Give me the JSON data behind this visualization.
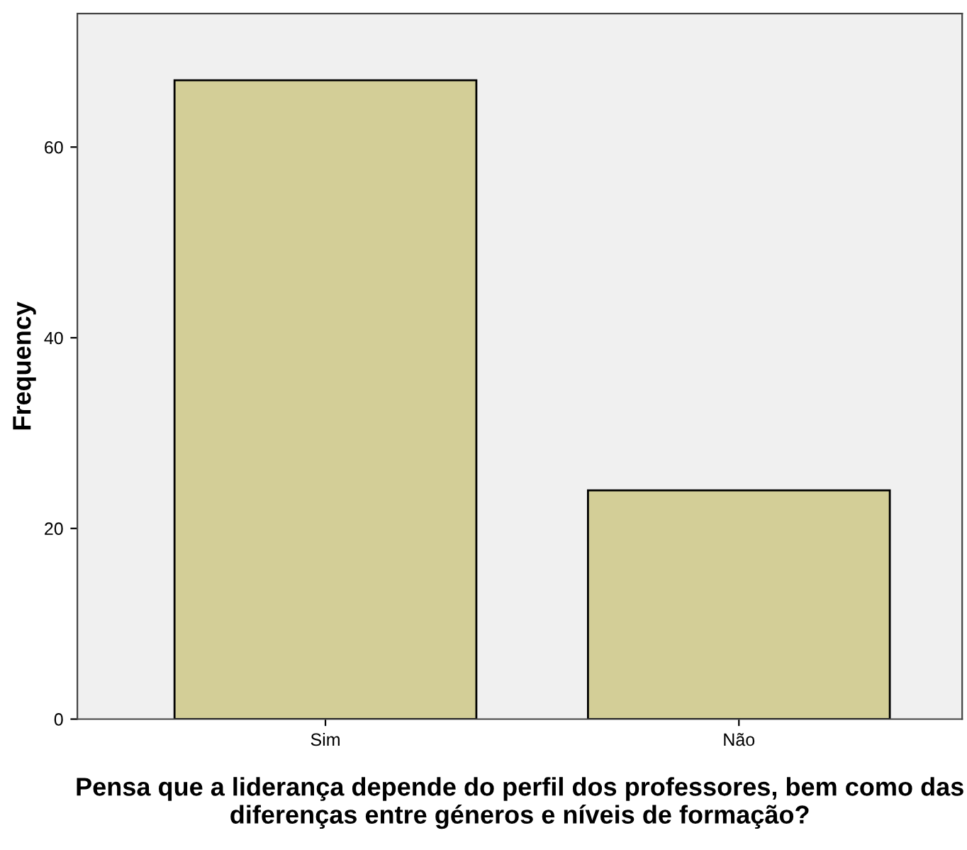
{
  "chart_data": {
    "type": "bar",
    "xlabel": "Pensa que a liderança depende do perfil dos professores, bem como das diferenças entre géneros e níveis de formação?",
    "ylabel": "Frequency",
    "categories": [
      "Sim",
      "Não"
    ],
    "values": [
      67,
      24
    ],
    "color": "#d3ce97",
    "ylim": [
      0,
      74
    ],
    "yticks": [
      0,
      20,
      40,
      60
    ],
    "grid": false,
    "legend": false
  }
}
